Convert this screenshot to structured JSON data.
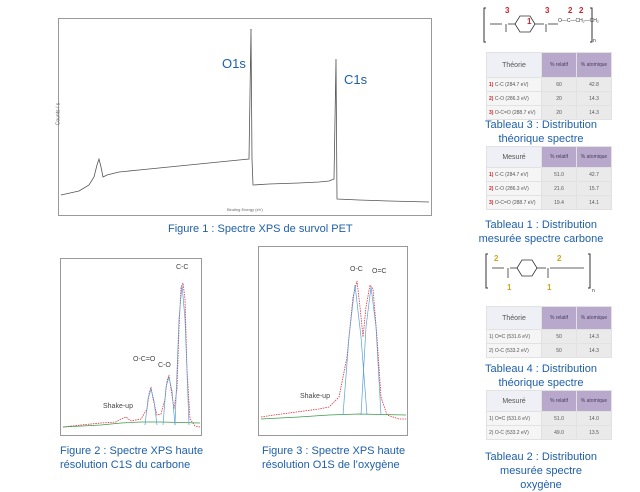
{
  "figure1": {
    "caption": "Figure 1 : Spectre XPS de survol PET",
    "peaks": [
      "O1s",
      "C1s"
    ],
    "xlabel": "Binding Energy (eV)",
    "ylabel": "Counts / s"
  },
  "figure2": {
    "caption_line1": "Figure 2 : Spectre XPS haute",
    "caption_line2": "résolution C1S du carbone",
    "peaks": [
      "C-C",
      "O-C=O",
      "C-O",
      "Shake-up"
    ]
  },
  "figure3": {
    "caption_line1": "Figure 3 : Spectre XPS haute",
    "caption_line2": "résolution O1S de l’oxygène",
    "peaks": [
      "O-C",
      "O=C",
      "Shake-up"
    ]
  },
  "structure_top": {
    "numbers": [
      "3",
      "1",
      "3",
      "2",
      "2"
    ],
    "subscript": "n",
    "formula_tail": "O—C—CH₂—CH₂"
  },
  "structure_bottom": {
    "numbers": [
      "2",
      "1",
      "1",
      "2"
    ],
    "subscript": "n"
  },
  "tableau3": {
    "header_label": "Théorie",
    "col1": "% relatif",
    "col2": "% atomique",
    "rows": [
      {
        "num": "1)",
        "label": "C-C (284.7 eV)",
        "rel": "60",
        "atom": "42.8"
      },
      {
        "num": "2)",
        "label": "C-O (286.3 eV)",
        "rel": "20",
        "atom": "14.3"
      },
      {
        "num": "3)",
        "label": "O-C=O (288.7 eV)",
        "rel": "20",
        "atom": "14.3"
      }
    ],
    "caption_line1": "Tableau 3 : Distribution",
    "caption_line2": "théorique spectre carbone"
  },
  "tableau1": {
    "header_label": "Mesuré",
    "col1": "% relatif",
    "col2": "% atomique",
    "rows": [
      {
        "num": "1)",
        "label": "C-C (284.7 eV)",
        "rel": "51.0",
        "atom": "42.7"
      },
      {
        "num": "2)",
        "label": "C-O (286.3 eV)",
        "rel": "21.6",
        "atom": "15.7"
      },
      {
        "num": "3)",
        "label": "O-C=O (288.7 eV)",
        "rel": "19.4",
        "atom": "14.1"
      }
    ],
    "caption_line1": "Tableau 1 : Distribution",
    "caption_line2": "mesurée spectre carbone"
  },
  "tableau4": {
    "header_label": "Théorie",
    "col1": "% relatif",
    "col2": "% atomique",
    "rows": [
      {
        "num": "1)",
        "label": "O=C (531.6 eV)",
        "rel": "50",
        "atom": "14.3"
      },
      {
        "num": "2)",
        "label": "O-C (533.2 eV)",
        "rel": "50",
        "atom": "14.3"
      }
    ],
    "caption_line1": "Tableau 4 : Distribution",
    "caption_line2": "théorique spectre oxygène"
  },
  "tableau2": {
    "header_label": "Mesuré",
    "col1": "% relatif",
    "col2": "% atomique",
    "rows": [
      {
        "num": "1)",
        "label": "O=C (531.6 eV)",
        "rel": "51.0",
        "atom": "14.0"
      },
      {
        "num": "2)",
        "label": "O-C (533.2 eV)",
        "rel": "49.0",
        "atom": "13.5"
      }
    ],
    "caption_line1": "Tableau 2 : Distribution",
    "caption_line2": "mesurée spectre oxygène"
  },
  "colors": {
    "caption": "#1f5fa8",
    "highlight_num": "#c0282d",
    "header_purple": "#b8a8cc",
    "fit_red": "#e0313a",
    "fit_blue": "#5aa0d8",
    "fit_green": "#3a9a4a"
  }
}
